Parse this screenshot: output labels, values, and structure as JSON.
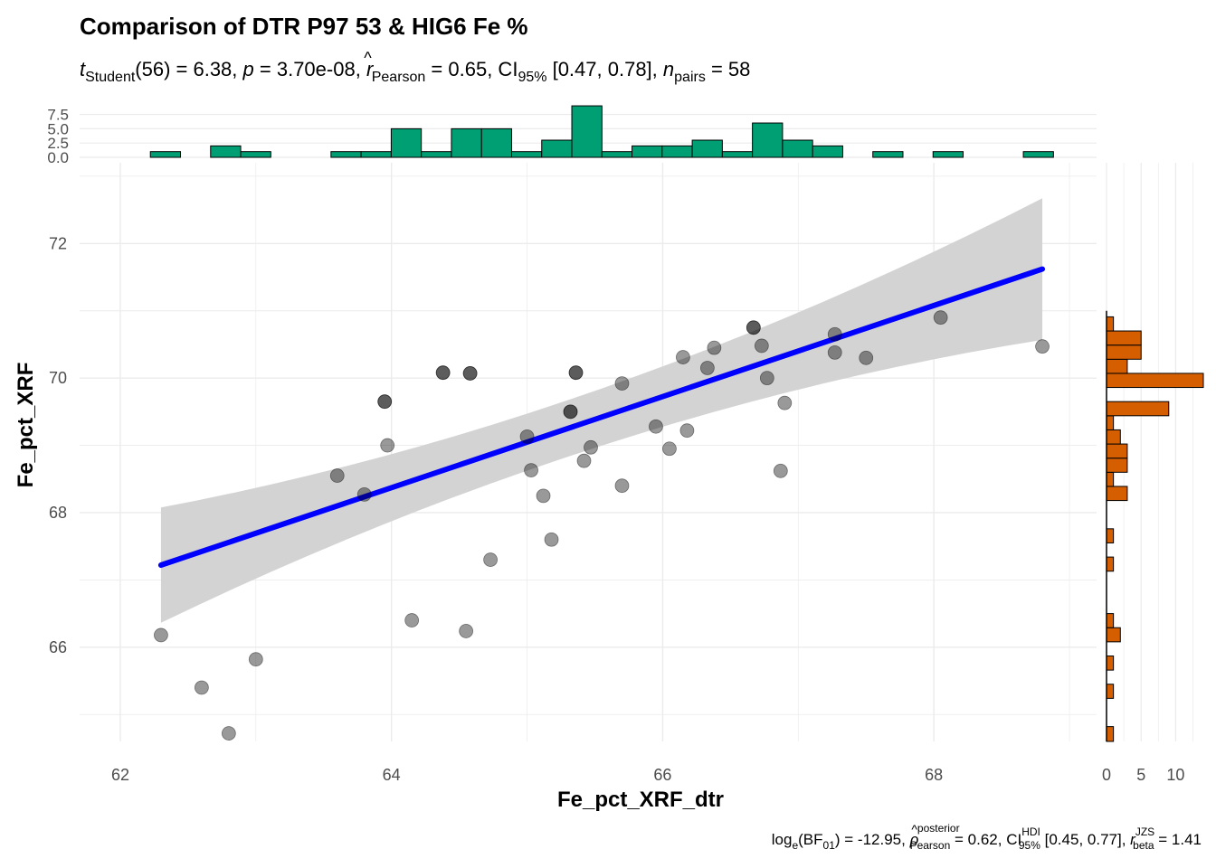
{
  "title": "Comparison of DTR P97 53 & HIG6 Fe %",
  "subtitle": {
    "t_label": "t",
    "t_sub": "Student",
    "t_df": "(56)",
    "t_value": " = 6.38, ",
    "p_label": "p",
    "p_value": " = 3.70e-08, ",
    "r_label": "r",
    "r_hat": "^",
    "r_sub": "Pearson",
    "r_value": " = 0.65, CI",
    "ci_sub": "95%",
    "ci_value": " [0.47, 0.78], ",
    "n_label": "n",
    "n_sub": "pairs",
    "n_value": " = 58"
  },
  "caption": {
    "log_label": "log",
    "log_sub": "e",
    "bf_open": "(BF",
    "bf_sub": "01",
    "bf_value": ") = -12.95, ",
    "rho_label": "ρ",
    "rho_hat": "^",
    "rho_sup": "posterior",
    "rho_sub": "Pearson",
    "rho_value": " = 0.62, CI",
    "ci_sup": "HDI",
    "ci_sub": "95%",
    "ci_value": " [0.45, 0.77], ",
    "rb_label": "r",
    "rb_sup": "JZS",
    "rb_sub": "beta",
    "rb_value": " = 1.41"
  },
  "colors": {
    "x_hist_fill": "#009E73",
    "y_hist_fill": "#D55E00",
    "points": "#000000",
    "regression_line": "#0000FF",
    "ci_band": "#D3D3D3",
    "grid": "#EBEBEB",
    "axis_text": "#4D4D4D"
  },
  "chart_data": {
    "type": "scatter",
    "xlabel": "Fe_pct_XRF_dtr",
    "ylabel": "Fe_pct_XRF",
    "x_ticks": [
      "62",
      "64",
      "66",
      "68"
    ],
    "y_ticks": [
      "66",
      "68",
      "70",
      "72"
    ],
    "xlim": [
      61.7,
      69.2
    ],
    "ylim": [
      64.6,
      73.2
    ],
    "grid": true,
    "points": [
      {
        "x": 62.3,
        "y": 66.18
      },
      {
        "x": 62.6,
        "y": 65.4
      },
      {
        "x": 62.8,
        "y": 64.72
      },
      {
        "x": 63.0,
        "y": 65.82
      },
      {
        "x": 63.6,
        "y": 68.55
      },
      {
        "x": 63.8,
        "y": 68.27
      },
      {
        "x": 63.95,
        "y": 69.65
      },
      {
        "x": 63.95,
        "y": 69.65
      },
      {
        "x": 63.97,
        "y": 69.0
      },
      {
        "x": 64.15,
        "y": 66.4
      },
      {
        "x": 64.38,
        "y": 70.08
      },
      {
        "x": 64.38,
        "y": 70.08
      },
      {
        "x": 64.55,
        "y": 66.24
      },
      {
        "x": 64.58,
        "y": 70.07
      },
      {
        "x": 64.58,
        "y": 70.07
      },
      {
        "x": 64.73,
        "y": 67.3
      },
      {
        "x": 65.0,
        "y": 69.13
      },
      {
        "x": 65.03,
        "y": 68.63
      },
      {
        "x": 65.12,
        "y": 68.25
      },
      {
        "x": 65.18,
        "y": 67.6
      },
      {
        "x": 65.32,
        "y": 69.5
      },
      {
        "x": 65.32,
        "y": 69.5
      },
      {
        "x": 65.36,
        "y": 70.08
      },
      {
        "x": 65.36,
        "y": 70.08
      },
      {
        "x": 65.42,
        "y": 68.77
      },
      {
        "x": 65.47,
        "y": 68.97
      },
      {
        "x": 65.7,
        "y": 69.92
      },
      {
        "x": 65.7,
        "y": 68.4
      },
      {
        "x": 65.95,
        "y": 69.28
      },
      {
        "x": 66.05,
        "y": 68.95
      },
      {
        "x": 66.15,
        "y": 70.31
      },
      {
        "x": 66.18,
        "y": 69.22
      },
      {
        "x": 66.33,
        "y": 70.15
      },
      {
        "x": 66.38,
        "y": 70.45
      },
      {
        "x": 66.67,
        "y": 70.75
      },
      {
        "x": 66.67,
        "y": 70.75
      },
      {
        "x": 66.73,
        "y": 70.48
      },
      {
        "x": 66.77,
        "y": 70.0
      },
      {
        "x": 66.87,
        "y": 68.62
      },
      {
        "x": 66.9,
        "y": 69.63
      },
      {
        "x": 67.27,
        "y": 70.65
      },
      {
        "x": 67.27,
        "y": 70.38
      },
      {
        "x": 67.5,
        "y": 70.3
      },
      {
        "x": 68.05,
        "y": 70.9
      },
      {
        "x": 68.8,
        "y": 70.47
      }
    ],
    "regression": {
      "x": [
        62.3,
        68.8
      ],
      "y": [
        67.22,
        71.62
      ],
      "ci_lower": [
        66.52,
        70.82
      ],
      "ci_upper": [
        67.92,
        72.57
      ]
    },
    "x_histogram": {
      "yticks": [
        "0.0",
        "2.5",
        "5.0",
        "7.5"
      ],
      "ylim": [
        0,
        9.8
      ],
      "bin_start": 62.0,
      "bin_width": 0.222,
      "counts": [
        0,
        1,
        0,
        2,
        1,
        0,
        0,
        1,
        1,
        5,
        1,
        5,
        5,
        1,
        3,
        9,
        1,
        2,
        2,
        3,
        1,
        6,
        3,
        2,
        0,
        1,
        0,
        1,
        0,
        0,
        1
      ]
    },
    "y_histogram": {
      "xticks": [
        "0",
        "5",
        "10"
      ],
      "xlim": [
        0,
        14
      ],
      "bins": [
        {
          "y0": 64.6,
          "y1": 64.82,
          "count": 1
        },
        {
          "y0": 65.24,
          "y1": 65.45,
          "count": 1
        },
        {
          "y0": 65.66,
          "y1": 65.87,
          "count": 1
        },
        {
          "y0": 66.08,
          "y1": 66.29,
          "count": 2
        },
        {
          "y0": 66.29,
          "y1": 66.5,
          "count": 1
        },
        {
          "y0": 67.13,
          "y1": 67.34,
          "count": 1
        },
        {
          "y0": 67.55,
          "y1": 67.76,
          "count": 1
        },
        {
          "y0": 68.18,
          "y1": 68.39,
          "count": 3
        },
        {
          "y0": 68.39,
          "y1": 68.6,
          "count": 1
        },
        {
          "y0": 68.6,
          "y1": 68.81,
          "count": 3
        },
        {
          "y0": 68.81,
          "y1": 69.02,
          "count": 3
        },
        {
          "y0": 69.02,
          "y1": 69.23,
          "count": 2
        },
        {
          "y0": 69.23,
          "y1": 69.44,
          "count": 1
        },
        {
          "y0": 69.44,
          "y1": 69.65,
          "count": 9
        },
        {
          "y0": 69.86,
          "y1": 70.07,
          "count": 14
        },
        {
          "y0": 70.07,
          "y1": 70.28,
          "count": 3
        },
        {
          "y0": 70.28,
          "y1": 70.49,
          "count": 5
        },
        {
          "y0": 70.49,
          "y1": 70.7,
          "count": 5
        },
        {
          "y0": 70.7,
          "y1": 70.91,
          "count": 1
        }
      ]
    }
  }
}
